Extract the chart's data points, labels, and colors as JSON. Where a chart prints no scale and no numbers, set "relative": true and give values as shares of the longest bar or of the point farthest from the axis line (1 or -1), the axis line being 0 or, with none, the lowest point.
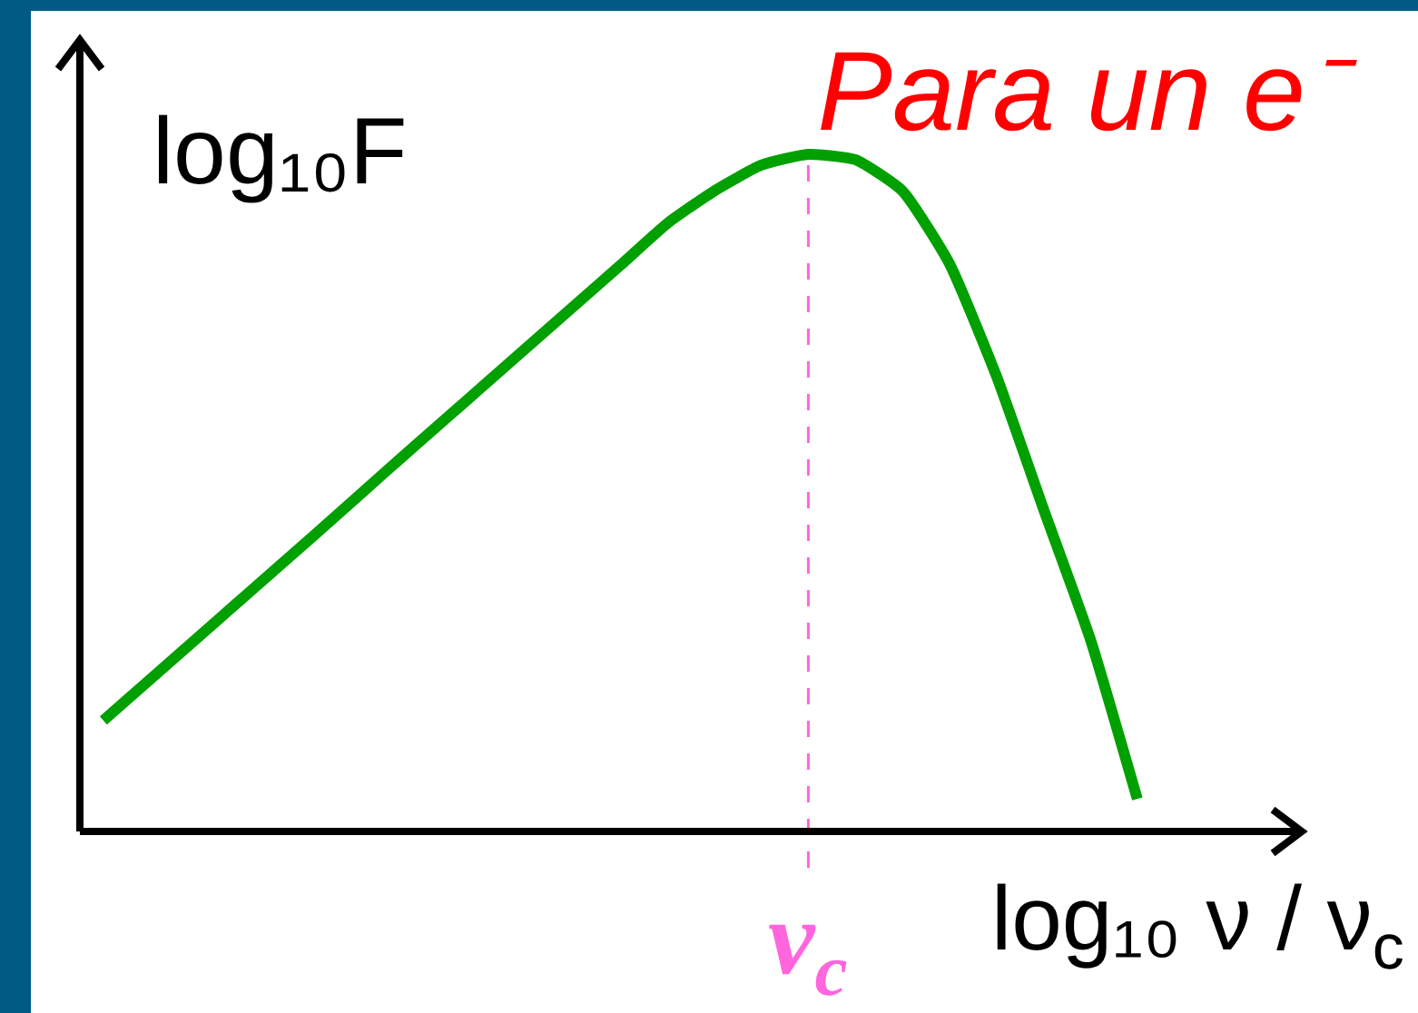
{
  "chart_data": {
    "type": "line",
    "title": "Para un e⁻",
    "xlabel": "log₁₀ ν / ν$_{c}$",
    "ylabel": "log₁₀F",
    "relative": true,
    "categories": [
      null,
      null,
      null,
      null,
      null,
      null,
      null,
      null,
      null,
      null,
      null,
      null,
      null,
      null,
      null,
      null,
      null,
      null,
      null,
      null,
      null,
      null,
      null,
      null,
      null,
      null
    ],
    "series": [
      {
        "color": "#00a000",
        "values": [
          0.164,
          0.225,
          0.286,
          0.347,
          0.408,
          0.469,
          0.531,
          0.592,
          0.653,
          0.714,
          0.775,
          0.836,
          0.898,
          0.946,
          0.984,
          1.0,
          0.992,
          0.946,
          0.839,
          0.673,
          0.477,
          0.284,
          0.048,
          null,
          null,
          null
        ]
      }
    ],
    "annotations": [
      "ν$_{c}$"
    ]
  }
}
